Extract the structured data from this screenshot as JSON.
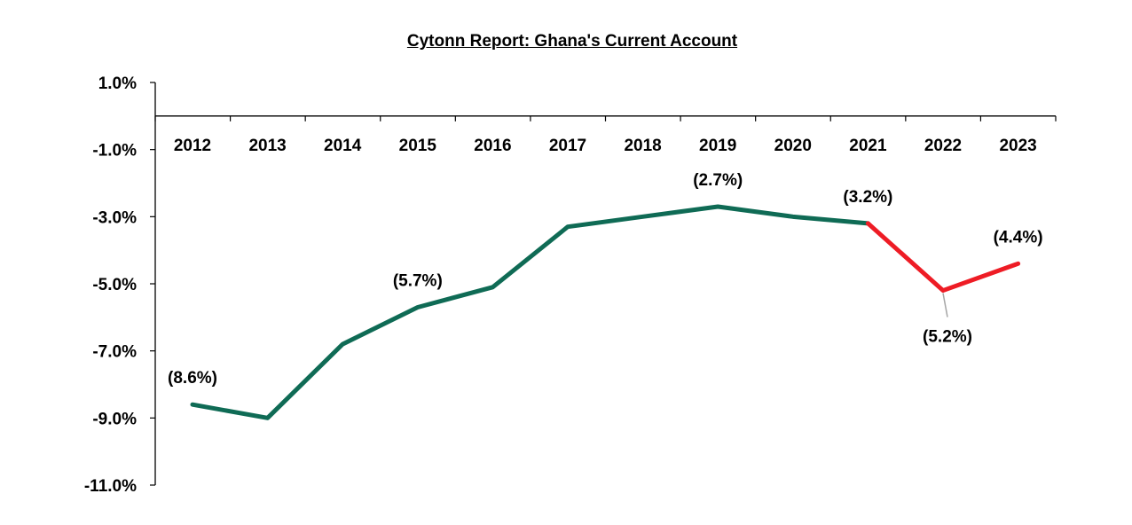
{
  "chart_data": {
    "type": "line",
    "title": "Cytonn Report: Ghana's Current Account",
    "xlabel": "",
    "ylabel": "",
    "categories": [
      "2012",
      "2013",
      "2014",
      "2015",
      "2016",
      "2017",
      "2018",
      "2019",
      "2020",
      "2021",
      "2022",
      "2023"
    ],
    "series": [
      {
        "values": [
          -8.6,
          -9.0,
          -6.8,
          -5.7,
          -5.1,
          -3.3,
          -3.0,
          -2.7,
          -3.0,
          -3.2,
          -5.2,
          -4.4
        ],
        "color": "#0f6b55",
        "highlight_color": "#ee1c25",
        "highlight_from_index": 9
      }
    ],
    "ylim": [
      -11.0,
      1.0
    ],
    "yticks": [
      "1.0%",
      "-1.0%",
      "-3.0%",
      "-5.0%",
      "-7.0%",
      "-9.0%",
      "-11.0%"
    ],
    "ytick_values": [
      1.0,
      -1.0,
      -3.0,
      -5.0,
      -7.0,
      -9.0,
      -11.0
    ],
    "data_labels": [
      {
        "index": 0,
        "text": "(8.6%)",
        "position": "above"
      },
      {
        "index": 3,
        "text": "(5.7%)",
        "position": "above"
      },
      {
        "index": 7,
        "text": "(2.7%)",
        "position": "above"
      },
      {
        "index": 9,
        "text": "(3.2%)",
        "position": "above"
      },
      {
        "index": 10,
        "text": "(5.2%)",
        "position": "below-leader"
      },
      {
        "index": 11,
        "text": "(4.4%)",
        "position": "above"
      }
    ],
    "grid": false,
    "legend": "none"
  }
}
